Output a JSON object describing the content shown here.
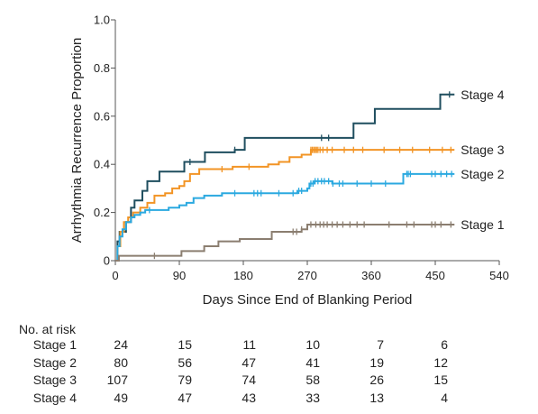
{
  "chart_data": {
    "type": "line",
    "step": true,
    "ylabel": "Arrhythmia Recurrence Proportion",
    "xlabel": "Days Since End of Blanking Period",
    "xlim": [
      0,
      540
    ],
    "ylim": [
      0,
      1.0
    ],
    "x_ticks": [
      0,
      90,
      180,
      270,
      360,
      450,
      540
    ],
    "y_ticks": [
      0,
      0.2,
      0.4,
      0.6,
      0.8,
      1.0
    ],
    "y_tick_labels": [
      "0",
      "0.2",
      "0.4",
      "0.6",
      "0.8",
      "1.0"
    ],
    "grid": false,
    "series": [
      {
        "name": "Stage 4",
        "color": "#1f4e5f",
        "points": [
          [
            0,
            0
          ],
          [
            3,
            0.08
          ],
          [
            6,
            0.12
          ],
          [
            15,
            0.16
          ],
          [
            22,
            0.22
          ],
          [
            27,
            0.25
          ],
          [
            38,
            0.29
          ],
          [
            45,
            0.33
          ],
          [
            55,
            0.33
          ],
          [
            62,
            0.37
          ],
          [
            90,
            0.37
          ],
          [
            97,
            0.41
          ],
          [
            122,
            0.41
          ],
          [
            126,
            0.45
          ],
          [
            168,
            0.46
          ],
          [
            182,
            0.51
          ],
          [
            302,
            0.51
          ],
          [
            335,
            0.57
          ],
          [
            365,
            0.63
          ],
          [
            450,
            0.63
          ],
          [
            457,
            0.69
          ],
          [
            477,
            0.69
          ]
        ],
        "censor": [
          105,
          168,
          290,
          300,
          470
        ]
      },
      {
        "name": "Stage 3",
        "color": "#f29425",
        "points": [
          [
            0,
            0
          ],
          [
            3,
            0.06
          ],
          [
            7,
            0.12
          ],
          [
            12,
            0.16
          ],
          [
            18,
            0.18
          ],
          [
            25,
            0.2
          ],
          [
            35,
            0.22
          ],
          [
            45,
            0.24
          ],
          [
            55,
            0.27
          ],
          [
            70,
            0.28
          ],
          [
            80,
            0.3
          ],
          [
            90,
            0.31
          ],
          [
            97,
            0.33
          ],
          [
            105,
            0.36
          ],
          [
            118,
            0.38
          ],
          [
            160,
            0.38
          ],
          [
            165,
            0.39
          ],
          [
            205,
            0.39
          ],
          [
            215,
            0.4
          ],
          [
            230,
            0.41
          ],
          [
            245,
            0.43
          ],
          [
            262,
            0.44
          ],
          [
            275,
            0.46
          ],
          [
            477,
            0.46
          ]
        ],
        "censor": [
          150,
          188,
          275,
          277,
          279,
          281,
          283,
          285,
          288,
          292,
          298,
          305,
          322,
          335,
          348,
          378,
          400,
          418,
          442,
          460,
          472
        ]
      },
      {
        "name": "Stage 2",
        "color": "#2ba9e0",
        "points": [
          [
            0,
            0
          ],
          [
            3,
            0.06
          ],
          [
            6,
            0.1
          ],
          [
            10,
            0.13
          ],
          [
            15,
            0.16
          ],
          [
            22,
            0.18
          ],
          [
            27,
            0.19
          ],
          [
            35,
            0.2
          ],
          [
            42,
            0.21
          ],
          [
            60,
            0.21
          ],
          [
            75,
            0.22
          ],
          [
            90,
            0.23
          ],
          [
            100,
            0.24
          ],
          [
            110,
            0.26
          ],
          [
            125,
            0.27
          ],
          [
            150,
            0.28
          ],
          [
            230,
            0.28
          ],
          [
            256,
            0.29
          ],
          [
            270,
            0.3
          ],
          [
            273,
            0.32
          ],
          [
            280,
            0.33
          ],
          [
            300,
            0.33
          ],
          [
            305,
            0.32
          ],
          [
            380,
            0.32
          ],
          [
            405,
            0.36
          ],
          [
            477,
            0.36
          ]
        ],
        "censor": [
          48,
          168,
          195,
          200,
          205,
          230,
          250,
          258,
          262,
          275,
          278,
          281,
          285,
          290,
          294,
          300,
          306,
          315,
          320,
          340,
          360,
          380,
          410,
          412,
          415,
          445,
          450,
          458,
          466,
          473
        ]
      },
      {
        "name": "Stage 1",
        "color": "#8b7e70",
        "points": [
          [
            0,
            0
          ],
          [
            5,
            0.02
          ],
          [
            20,
            0.02
          ],
          [
            52,
            0.02
          ],
          [
            60,
            0.02
          ],
          [
            90,
            0.02
          ],
          [
            93,
            0.04
          ],
          [
            120,
            0.04
          ],
          [
            125,
            0.06
          ],
          [
            140,
            0.06
          ],
          [
            145,
            0.08
          ],
          [
            170,
            0.08
          ],
          [
            175,
            0.09
          ],
          [
            215,
            0.09
          ],
          [
            220,
            0.12
          ],
          [
            255,
            0.12
          ],
          [
            262,
            0.13
          ],
          [
            270,
            0.15
          ],
          [
            477,
            0.15
          ]
        ],
        "censor": [
          55,
          250,
          255,
          262,
          275,
          282,
          288,
          293,
          298,
          305,
          312,
          320,
          330,
          340,
          350,
          385,
          410,
          420,
          445,
          450,
          458,
          472
        ]
      }
    ]
  },
  "risk_table": {
    "title": "No. at risk",
    "x_days": [
      0,
      90,
      180,
      270,
      360,
      450
    ],
    "rows": [
      {
        "label": "Stage 1",
        "values": [
          "24",
          "15",
          "11",
          "10",
          "7",
          "6"
        ]
      },
      {
        "label": "Stage 2",
        "values": [
          "80",
          "56",
          "47",
          "41",
          "19",
          "12"
        ]
      },
      {
        "label": "Stage 3",
        "values": [
          "107",
          "79",
          "74",
          "58",
          "26",
          "15"
        ]
      },
      {
        "label": "Stage 4",
        "values": [
          "49",
          "47",
          "43",
          "33",
          "13",
          "4"
        ]
      }
    ]
  }
}
